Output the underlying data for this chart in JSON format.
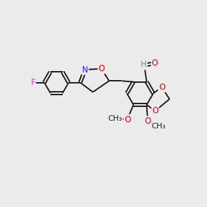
{
  "bg_color": "#ebebeb",
  "bond_color": "#1a1a1a",
  "atom_colors": {
    "O": "#e00000",
    "N": "#2020ff",
    "F": "#cc44cc",
    "H": "#4a9090",
    "C": "#1a1a1a"
  },
  "font_size": 8.5,
  "bond_width": 1.4
}
